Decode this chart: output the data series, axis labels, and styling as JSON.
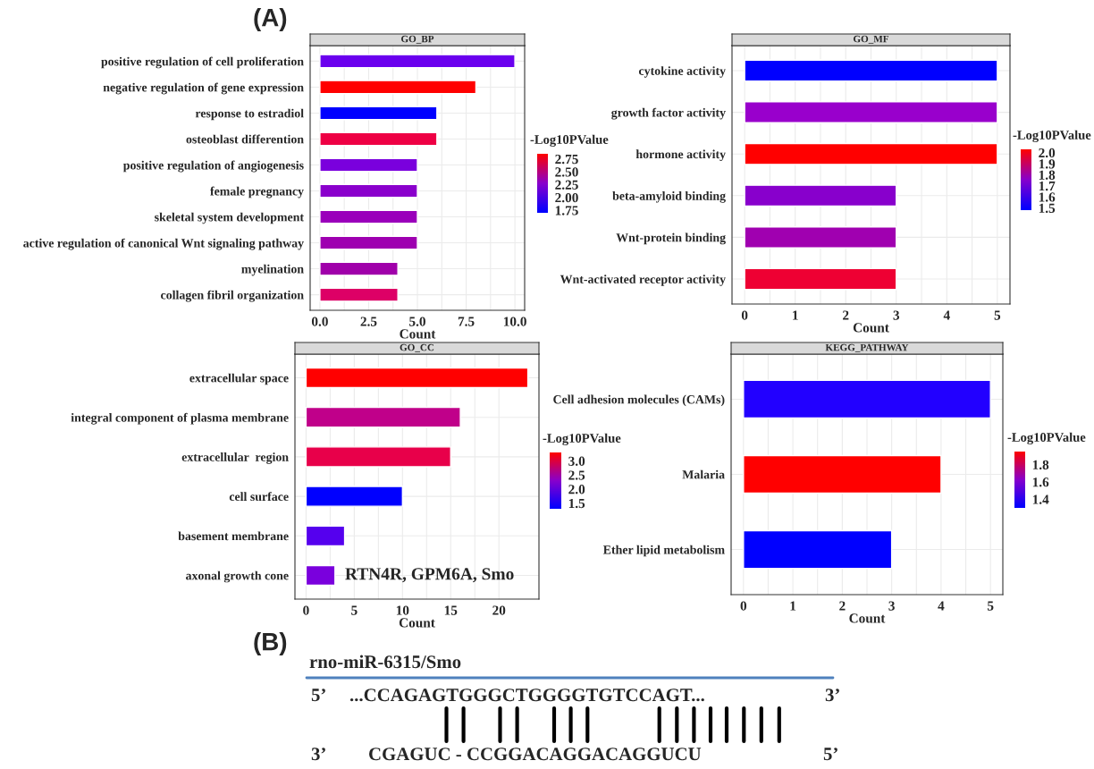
{
  "chart_data": [
    {
      "type": "bar",
      "orientation": "horizontal",
      "title": "GO_BP",
      "xlabel": "Count",
      "clabel": "-Log10PValue",
      "grid": true,
      "annotations": [
        "(A)"
      ],
      "categories": [
        "positive regulation of cell proliferation",
        "negative regulation of gene expression",
        "response to estradiol",
        "osteoblast differention",
        "positive regulation of angiogenesis",
        "female pregnancy",
        "skeletal system development",
        "active regulation of canonical Wnt signaling pathway",
        "myelination",
        "collagen fibril organization"
      ],
      "values": [
        10,
        8,
        6,
        6,
        5,
        5,
        5,
        5,
        4,
        4
      ],
      "colors": [
        "#6a00ee",
        "#ff0000",
        "#0000ff",
        "#ee0044",
        "#7a00dd",
        "#8a00cc",
        "#9a00bb",
        "#9e00b0",
        "#a000aa",
        "#dd0066"
      ],
      "xlim": [
        -0.5,
        10.5
      ],
      "xticks": [
        {
          "value": 0,
          "label": "0.0"
        },
        2.5,
        {
          "value": 5,
          "label": "5.0"
        },
        7.5,
        {
          "value": 10,
          "label": "10.0"
        }
      ],
      "clim": [
        1.7,
        2.85
      ],
      "cticks": [
        1.75,
        {
          "value": 2,
          "label": "2.00"
        },
        2.25,
        {
          "value": 2.5,
          "label": "2.50"
        },
        2.75
      ]
    },
    {
      "type": "bar",
      "orientation": "horizontal",
      "title": "GO_MF",
      "xlabel": "Count",
      "clabel": "-Log10PValue",
      "grid": true,
      "categories": [
        "cytokine activity",
        "growth factor activity",
        "hormone activity",
        "beta-amyloid binding",
        "Wnt-protein binding",
        "Wnt-activated receptor activity"
      ],
      "values": [
        5,
        5,
        5,
        3,
        3,
        3
      ],
      "colors": [
        "#0000ff",
        "#9900cc",
        "#ff0000",
        "#8800cc",
        "#a000b0",
        "#ee0033"
      ],
      "xlim": [
        -0.25,
        5.25
      ],
      "xticks": [
        0,
        1,
        2,
        3,
        4,
        5
      ],
      "clim": [
        1.48,
        2.03
      ],
      "cticks": [
        1.5,
        1.6,
        1.7,
        1.8,
        1.9,
        {
          "value": 2,
          "label": "2.0"
        }
      ]
    },
    {
      "type": "bar",
      "orientation": "horizontal",
      "title": "GO_CC",
      "xlabel": "Count",
      "clabel": "-Log10PValue",
      "grid": true,
      "annotations": [
        {
          "text": "RTN4R, GPM6A, Smo",
          "x": 3,
          "y": "axonal growth cone"
        }
      ],
      "categories": [
        "extracellular space",
        "integral component of plasma membrane",
        "extracellular  region",
        "cell surface",
        "basement membrane",
        "axonal growth cone"
      ],
      "values": [
        23,
        16,
        15,
        10,
        4,
        3
      ],
      "colors": [
        "#ff0000",
        "#c0008a",
        "#e8004a",
        "#0000ff",
        "#5500ee",
        "#7a00dd"
      ],
      "xlim": [
        -1.15,
        24.15
      ],
      "xticks": [
        0,
        5,
        10,
        15,
        20
      ],
      "clim": [
        1.3,
        3.3
      ],
      "cticks": [
        1.5,
        {
          "value": 2,
          "label": "2.0"
        },
        2.5,
        {
          "value": 3,
          "label": "3.0"
        }
      ]
    },
    {
      "type": "bar",
      "orientation": "horizontal",
      "title": "KEGG_PATHWAY",
      "xlabel": "Count",
      "clabel": "-Log10PValue",
      "grid": true,
      "categories": [
        "Cell adhesion molecules (CAMs)",
        "Malaria",
        "Ether lipid metabolism"
      ],
      "values": [
        5,
        4,
        3
      ],
      "colors": [
        "#2200ff",
        "#ff0000",
        "#0000ff"
      ],
      "xlim": [
        -0.25,
        5.25
      ],
      "xticks": [
        0,
        1,
        2,
        3,
        4,
        5
      ],
      "clim": [
        1.3,
        1.95
      ],
      "cticks": [
        1.4,
        1.6,
        1.8
      ]
    },
    {
      "type": "other",
      "annotations": [
        "(B)",
        "rno-miR-6315/Smo",
        "5’",
        "...CCAGAGTGGGCTGGGGTGTCCAGT...",
        "3’",
        "3’",
        "CGAGUC - CCGGACAGGACAGGUCU",
        "5’"
      ]
    }
  ]
}
